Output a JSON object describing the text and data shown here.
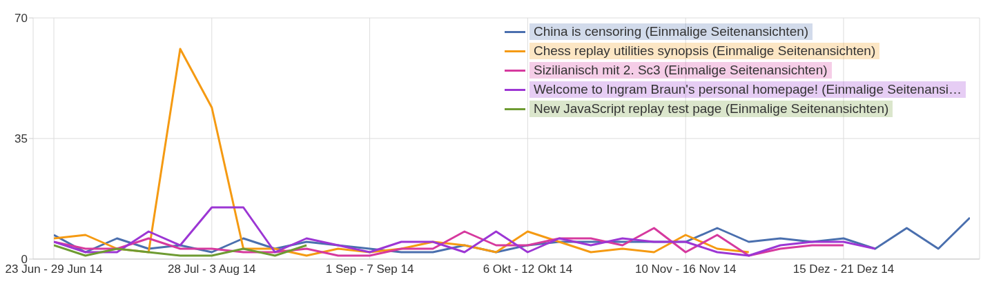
{
  "chart_data": {
    "type": "line",
    "categories": [
      "23 Jun - 29 Jun 14",
      null,
      null,
      null,
      null,
      "28 Jul - 3 Aug 14",
      null,
      null,
      null,
      null,
      "1 Sep - 7 Sep 14",
      null,
      null,
      null,
      null,
      "6 Okt - 12 Okt 14",
      null,
      null,
      null,
      null,
      "10 Nov - 16 Nov 14",
      null,
      null,
      null,
      null,
      "15 Dez - 21 Dez 14",
      null,
      null,
      null,
      null
    ],
    "series": [
      {
        "name": "China is censoring (Einmalige Seitenansichten)",
        "color": "#4a6fae",
        "values": [
          7,
          2,
          6,
          3,
          4,
          2,
          6,
          3,
          5,
          4,
          3,
          2,
          2,
          4,
          2,
          4,
          5,
          5,
          5,
          5,
          5,
          9,
          5,
          6,
          5,
          6,
          3,
          9,
          3,
          12
        ]
      },
      {
        "name": "Chess replay utilities synopsis (Einmalige Seitenansichten)",
        "color": "#f59a12",
        "values": [
          6,
          7,
          3,
          2,
          61,
          44,
          3,
          3,
          1,
          3,
          2,
          3,
          5,
          4,
          2,
          8,
          5,
          2,
          3,
          2,
          7,
          3,
          2,
          null,
          null,
          null,
          null,
          null,
          null,
          null
        ]
      },
      {
        "name": "Sizilianisch mit 2. Sc3 (Einmalige Seitenansichten)",
        "color": "#d6399e",
        "values": [
          5,
          3,
          3,
          6,
          3,
          3,
          2,
          2,
          3,
          1,
          1,
          3,
          3,
          8,
          4,
          4,
          6,
          6,
          4,
          9,
          2,
          7,
          1,
          3,
          4,
          4,
          null,
          null,
          null,
          null
        ]
      },
      {
        "name": "Welcome to Ingram Braun's personal homepage! (Einmalige Seitenansi…",
        "color": "#9c36d4",
        "values": [
          5,
          2,
          2,
          8,
          4,
          15,
          15,
          2,
          6,
          4,
          2,
          5,
          5,
          2,
          8,
          2,
          6,
          4,
          6,
          5,
          5,
          2,
          1,
          4,
          5,
          5,
          3,
          null,
          null,
          null
        ]
      },
      {
        "name": "New JavaScript replay test page (Einmalige Seitenansichten)",
        "color": "#6e9b32",
        "values": [
          4,
          1,
          3,
          2,
          1,
          1,
          3,
          1,
          4,
          null,
          null,
          null,
          null,
          null,
          null,
          null,
          null,
          null,
          null,
          null,
          null,
          null,
          null,
          null,
          null,
          null,
          null,
          null,
          null,
          null
        ]
      }
    ],
    "ylim": [
      0,
      70
    ],
    "yticks": [
      0,
      35,
      70
    ],
    "grid": true,
    "legend": "top right",
    "marker": "none",
    "line_style": "solid"
  }
}
